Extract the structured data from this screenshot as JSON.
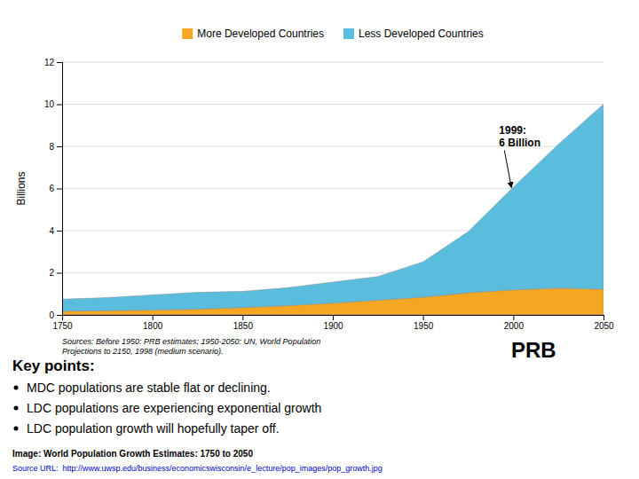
{
  "chart_data": {
    "type": "area",
    "stacked": true,
    "x": [
      1750,
      1775,
      1800,
      1825,
      1850,
      1875,
      1900,
      1925,
      1950,
      1975,
      2000,
      2025,
      2050
    ],
    "series": [
      {
        "name": "More Developed Countries",
        "color": "#F5A623",
        "values": [
          0.18,
          0.2,
          0.23,
          0.27,
          0.35,
          0.44,
          0.56,
          0.7,
          0.84,
          1.05,
          1.19,
          1.27,
          1.22
        ]
      },
      {
        "name": "Less Developed Countries",
        "color": "#5BBDDE",
        "values": [
          0.57,
          0.62,
          0.72,
          0.8,
          0.77,
          0.85,
          1.0,
          1.12,
          1.68,
          2.9,
          4.87,
          6.83,
          8.78
        ]
      }
    ],
    "xlim": [
      1750,
      2050
    ],
    "xticks": [
      1750,
      1800,
      1850,
      1900,
      1950,
      2000,
      2050
    ],
    "ylim": [
      0,
      12
    ],
    "yticks": [
      0,
      2,
      4,
      6,
      8,
      10,
      12
    ],
    "ylabel": "Billions",
    "grid": "y",
    "legend": "top",
    "annotations": [
      {
        "text": "1999:\n6 Billion",
        "x": 1999,
        "y": 6.0
      }
    ],
    "source": "Sources: Before 1950: PRB estimates; 1950-2050: UN, World Population\nProjections to 2150, 1998 (medium scenario)."
  },
  "texts": {
    "logo": "PRB",
    "key_points_title": "Key points:",
    "key_points": [
      "MDC populations are stable flat or declining.",
      "LDC populations are experiencing exponential growth",
      "LDC population growth will hopefully taper off."
    ],
    "image_label": "Image: World Population Growth Estimates: 1750 to 2050",
    "source_url": {
      "text": "Source URL:  http://www.uwsp.edu/business/economicswisconsin/e_lecture/pop_images/pop_growth.jpg",
      "color": "#0000CC"
    }
  }
}
